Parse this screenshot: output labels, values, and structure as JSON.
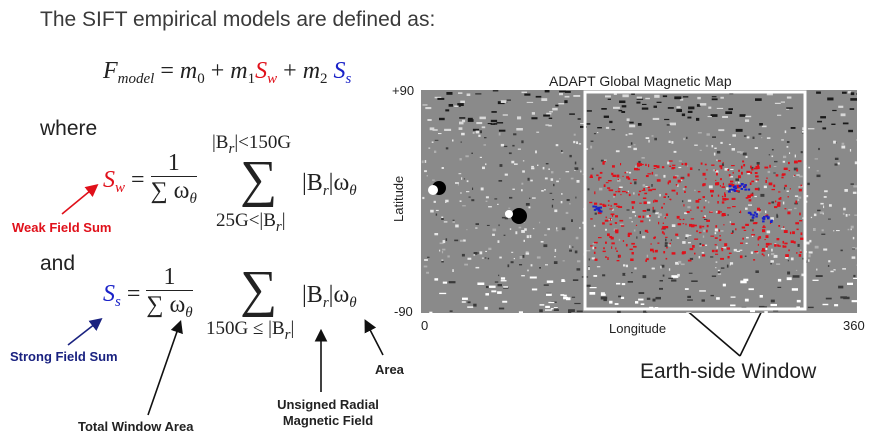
{
  "slide": {
    "title": "The SIFT empirical models are defined as:"
  },
  "equations": {
    "fmodel": {
      "lhs_var": "F",
      "lhs_sub": "model",
      "eq": " = ",
      "m0": "m",
      "m0_sub": "0",
      "plus1": " + ",
      "m1": "m",
      "m1_sub": "1",
      "sw_S": "S",
      "sw_sub": "w",
      "plus2": " + ",
      "m2": "m",
      "m2_sub": "2",
      "ss_S": "S",
      "ss_sub": "s"
    },
    "where": "where",
    "and": "and",
    "sw": {
      "var": "S",
      "sub": "w",
      "eq": " = ",
      "num": "1",
      "den": "∑ ω",
      "den_sub": "θ",
      "upper": "|B",
      "upper_sub": "r",
      "upper_rest": "|<150G",
      "lower": "25G<|B",
      "lower_sub": "r",
      "lower_rest": "|",
      "term": "|B",
      "term_sub": "r",
      "term_mid": "|ω",
      "term_sub2": "θ"
    },
    "ss": {
      "var": "S",
      "sub": "s",
      "eq": " = ",
      "num": "1",
      "den": "∑ ω",
      "den_sub": "θ",
      "lower": "150G ≤ |B",
      "lower_sub": "r",
      "lower_rest": "|",
      "term": "|B",
      "term_sub": "r",
      "term_mid": "|ω",
      "term_sub2": "θ"
    }
  },
  "annotations": {
    "weak": "Weak Field Sum",
    "strong": "Strong Field Sum",
    "total_area": "Total Window Area",
    "unsigned": "Unsigned Radial Magnetic Field",
    "area": "Area",
    "earth_side": "Earth-side Window"
  },
  "map": {
    "title": "ADAPT Global Magnetic Map",
    "y_top": "+90",
    "y_bottom": "-90",
    "y_label": "Latitude",
    "x_left": "0",
    "x_right": "360",
    "x_label": "Longitude"
  },
  "colors": {
    "weak": "#e0101a",
    "strong": "#1a22c8",
    "map_gray": "#8a8a8a"
  }
}
